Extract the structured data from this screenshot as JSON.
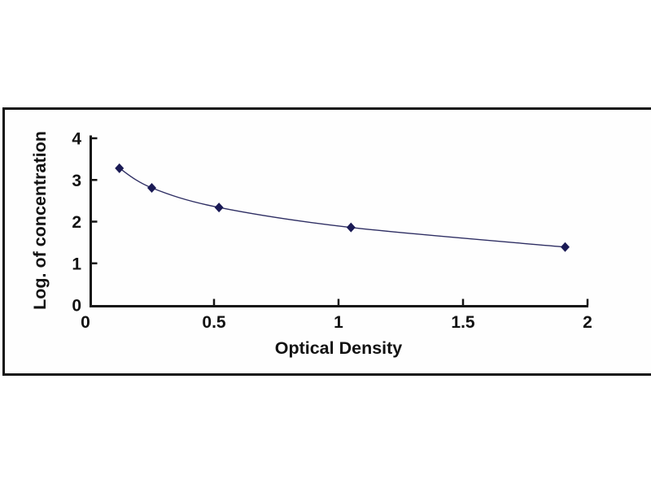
{
  "figure": {
    "background_color": "#ffffff",
    "frame_border_color": "#141414",
    "plot_background_color": "#fefefe"
  },
  "chart_data": {
    "type": "line",
    "title": "",
    "xlabel": "Optical Density",
    "ylabel": "Log. of concentration",
    "x": [
      0.12,
      0.25,
      0.52,
      1.05,
      1.91
    ],
    "y": [
      3.28,
      2.81,
      2.34,
      1.86,
      1.39
    ],
    "xlim": [
      0,
      2
    ],
    "ylim": [
      0,
      4
    ],
    "x_ticks": [
      0,
      0.5,
      1,
      1.5,
      2
    ],
    "x_tick_labels": [
      "0",
      "0.5",
      "1",
      "1.5",
      "2"
    ],
    "y_ticks": [
      0,
      1,
      2,
      3,
      4
    ],
    "y_tick_labels": [
      "0",
      "1",
      "2",
      "3",
      "4"
    ],
    "grid": false,
    "legend": null,
    "marker": "diamond",
    "line_color": "#2e2e63",
    "marker_color": "#1a1a55",
    "axis_color": "#141414",
    "text_color": "#121212"
  }
}
